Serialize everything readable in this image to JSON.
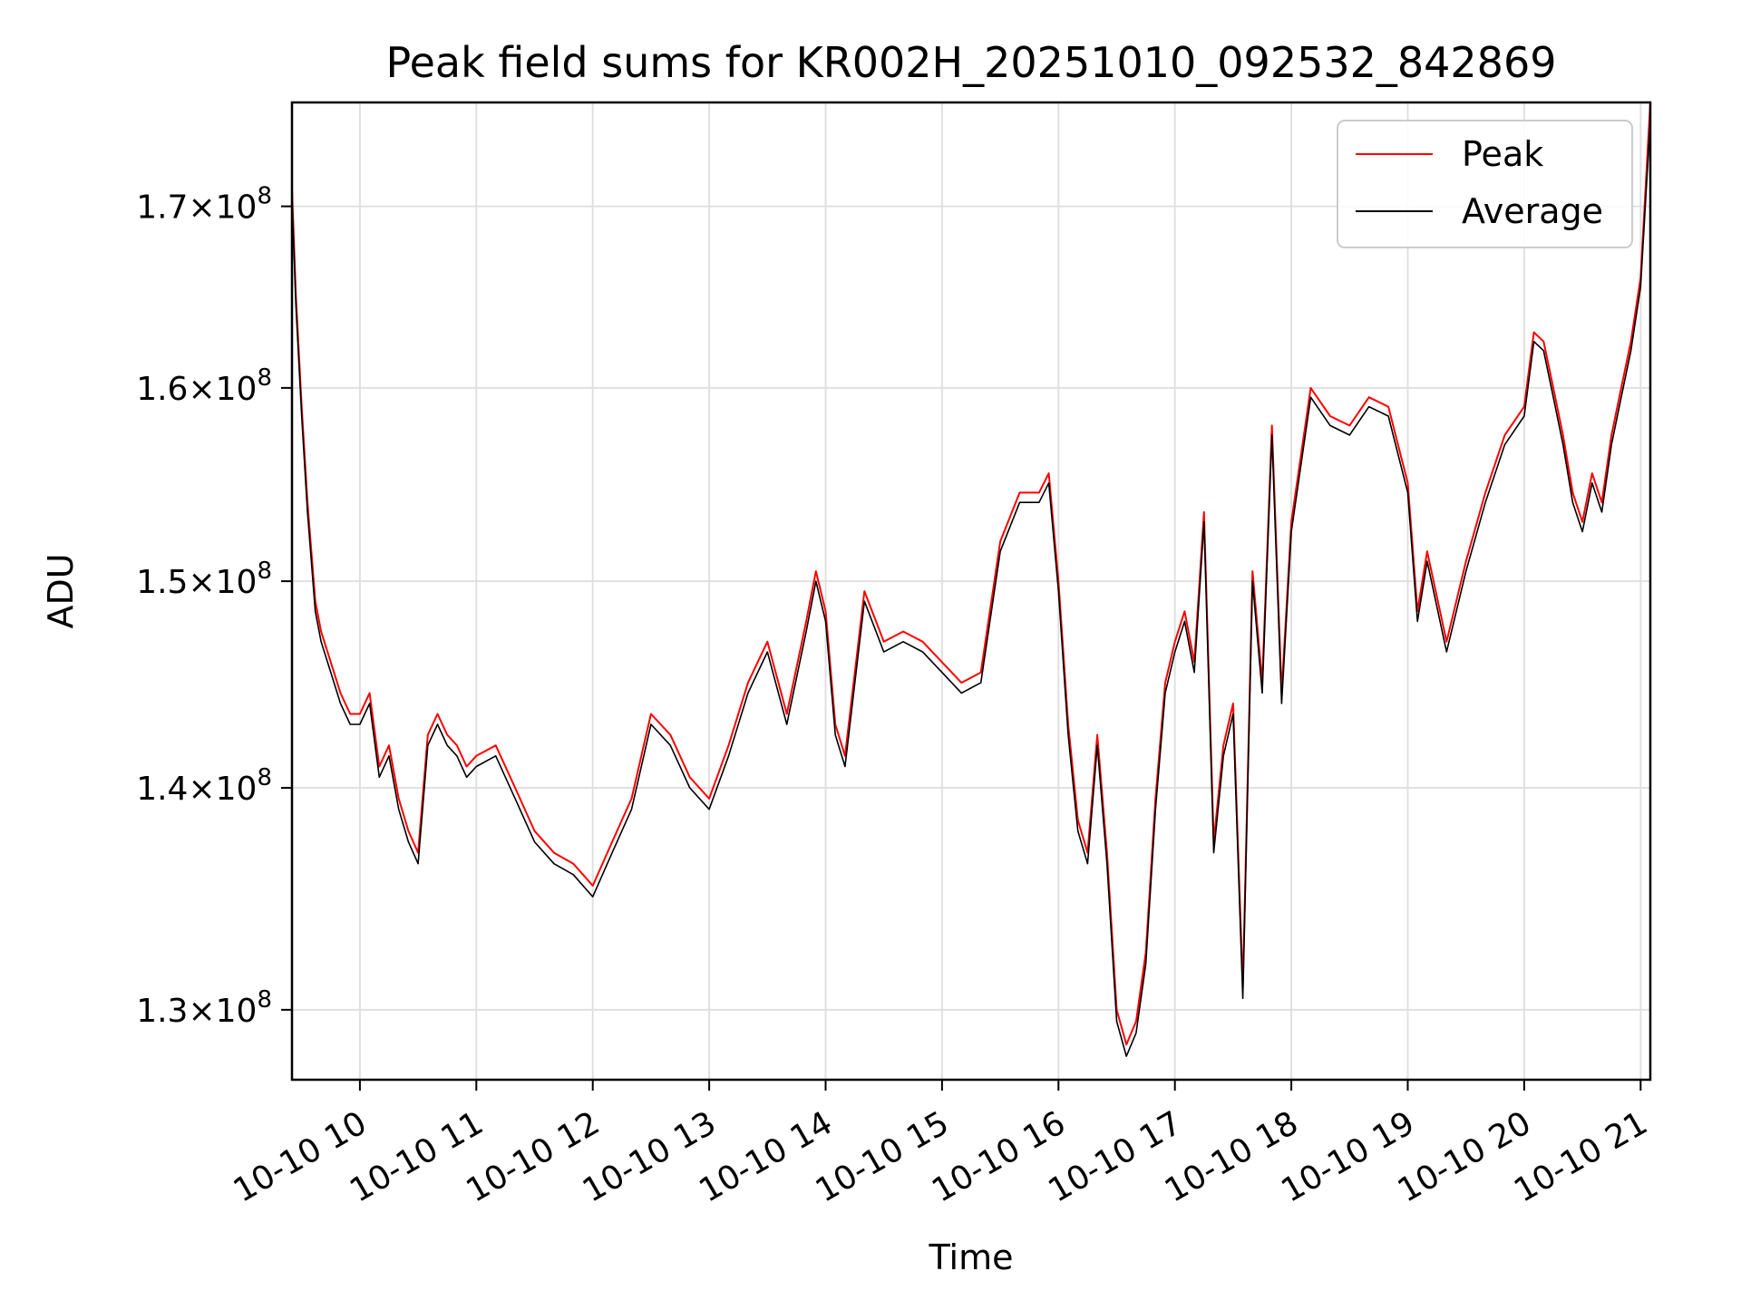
{
  "chart_data": {
    "type": "line",
    "title": "Peak field sums for KR002H_20251010_092532_842869",
    "xlabel": "Time",
    "ylabel": "ADU",
    "x_axis": {
      "kind": "time",
      "range": [
        "2025-10-10 09:25",
        "2025-10-10 21:05"
      ],
      "ticks": [
        {
          "value": "2025-10-10 10:00",
          "label": "10-10 10"
        },
        {
          "value": "2025-10-10 11:00",
          "label": "10-10 11"
        },
        {
          "value": "2025-10-10 12:00",
          "label": "10-10 12"
        },
        {
          "value": "2025-10-10 13:00",
          "label": "10-10 13"
        },
        {
          "value": "2025-10-10 14:00",
          "label": "10-10 14"
        },
        {
          "value": "2025-10-10 15:00",
          "label": "10-10 15"
        },
        {
          "value": "2025-10-10 16:00",
          "label": "10-10 16"
        },
        {
          "value": "2025-10-10 17:00",
          "label": "10-10 17"
        },
        {
          "value": "2025-10-10 18:00",
          "label": "10-10 18"
        },
        {
          "value": "2025-10-10 19:00",
          "label": "10-10 19"
        },
        {
          "value": "2025-10-10 20:00",
          "label": "10-10 20"
        },
        {
          "value": "2025-10-10 21:00",
          "label": "10-10 21"
        }
      ]
    },
    "y_axis": {
      "scale": "log",
      "range": [
        127000000,
        176000000
      ],
      "ticks": [
        {
          "value": 130000000,
          "mantissa": "1.3",
          "exponent": "8"
        },
        {
          "value": 140000000,
          "mantissa": "1.4",
          "exponent": "8"
        },
        {
          "value": 150000000,
          "mantissa": "1.5",
          "exponent": "8"
        },
        {
          "value": 160000000,
          "mantissa": "1.6",
          "exponent": "8"
        },
        {
          "value": 170000000,
          "mantissa": "1.7",
          "exponent": "8"
        }
      ]
    },
    "grid": true,
    "legend": {
      "placement": "top-right"
    },
    "series": [
      {
        "name": "Peak",
        "color": "#ff0000",
        "x": [
          "2025-10-10 09:25",
          "2025-10-10 09:27",
          "2025-10-10 09:30",
          "2025-10-10 09:33",
          "2025-10-10 09:37",
          "2025-10-10 09:40",
          "2025-10-10 09:45",
          "2025-10-10 09:50",
          "2025-10-10 09:55",
          "2025-10-10 10:00",
          "2025-10-10 10:05",
          "2025-10-10 10:10",
          "2025-10-10 10:15",
          "2025-10-10 10:20",
          "2025-10-10 10:25",
          "2025-10-10 10:30",
          "2025-10-10 10:35",
          "2025-10-10 10:40",
          "2025-10-10 10:45",
          "2025-10-10 10:50",
          "2025-10-10 10:55",
          "2025-10-10 11:00",
          "2025-10-10 11:10",
          "2025-10-10 11:20",
          "2025-10-10 11:30",
          "2025-10-10 11:40",
          "2025-10-10 11:50",
          "2025-10-10 11:55",
          "2025-10-10 12:00",
          "2025-10-10 12:10",
          "2025-10-10 12:20",
          "2025-10-10 12:30",
          "2025-10-10 12:40",
          "2025-10-10 12:50",
          "2025-10-10 13:00",
          "2025-10-10 13:10",
          "2025-10-10 13:20",
          "2025-10-10 13:30",
          "2025-10-10 13:40",
          "2025-10-10 13:50",
          "2025-10-10 13:55",
          "2025-10-10 14:00",
          "2025-10-10 14:05",
          "2025-10-10 14:10",
          "2025-10-10 14:20",
          "2025-10-10 14:30",
          "2025-10-10 14:40",
          "2025-10-10 14:50",
          "2025-10-10 15:00",
          "2025-10-10 15:10",
          "2025-10-10 15:20",
          "2025-10-10 15:30",
          "2025-10-10 15:40",
          "2025-10-10 15:50",
          "2025-10-10 15:55",
          "2025-10-10 16:00",
          "2025-10-10 16:05",
          "2025-10-10 16:10",
          "2025-10-10 16:15",
          "2025-10-10 16:20",
          "2025-10-10 16:25",
          "2025-10-10 16:30",
          "2025-10-10 16:35",
          "2025-10-10 16:40",
          "2025-10-10 16:45",
          "2025-10-10 16:50",
          "2025-10-10 16:55",
          "2025-10-10 17:00",
          "2025-10-10 17:05",
          "2025-10-10 17:10",
          "2025-10-10 17:15",
          "2025-10-10 17:20",
          "2025-10-10 17:25",
          "2025-10-10 17:30",
          "2025-10-10 17:35",
          "2025-10-10 17:40",
          "2025-10-10 17:45",
          "2025-10-10 17:50",
          "2025-10-10 17:55",
          "2025-10-10 18:00",
          "2025-10-10 18:10",
          "2025-10-10 18:20",
          "2025-10-10 18:30",
          "2025-10-10 18:40",
          "2025-10-10 18:50",
          "2025-10-10 19:00",
          "2025-10-10 19:05",
          "2025-10-10 19:10",
          "2025-10-10 19:20",
          "2025-10-10 19:30",
          "2025-10-10 19:40",
          "2025-10-10 19:50",
          "2025-10-10 20:00",
          "2025-10-10 20:05",
          "2025-10-10 20:10",
          "2025-10-10 20:15",
          "2025-10-10 20:20",
          "2025-10-10 20:25",
          "2025-10-10 20:30",
          "2025-10-10 20:35",
          "2025-10-10 20:40",
          "2025-10-10 20:45",
          "2025-10-10 20:50",
          "2025-10-10 20:55",
          "2025-10-10 21:00",
          "2025-10-10 21:05"
        ],
        "y": [
          171000000,
          165000000,
          159000000,
          154000000,
          149000000,
          147500000,
          146000000,
          144500000,
          143500000,
          143500000,
          144500000,
          141000000,
          142000000,
          139500000,
          138000000,
          137000000,
          142500000,
          143500000,
          142500000,
          142000000,
          141000000,
          141500000,
          142000000,
          140000000,
          138000000,
          137000000,
          136500000,
          136000000,
          135500000,
          137500000,
          139500000,
          143500000,
          142500000,
          140500000,
          139500000,
          142000000,
          145000000,
          147000000,
          143500000,
          148000000,
          150500000,
          148500000,
          143000000,
          141500000,
          149500000,
          147000000,
          147500000,
          147000000,
          146000000,
          145000000,
          145500000,
          152000000,
          154500000,
          154500000,
          155500000,
          150000000,
          143000000,
          138500000,
          137000000,
          142500000,
          137000000,
          130000000,
          128500000,
          129500000,
          132500000,
          139500000,
          145000000,
          147000000,
          148500000,
          146000000,
          153500000,
          137500000,
          142000000,
          144000000,
          131000000,
          150500000,
          145000000,
          158000000,
          144500000,
          153000000,
          160000000,
          158500000,
          158000000,
          159500000,
          159000000,
          155000000,
          148500000,
          151500000,
          147000000,
          151000000,
          154500000,
          157500000,
          159000000,
          163000000,
          162500000,
          160000000,
          157500000,
          154500000,
          153000000,
          155500000,
          154000000,
          157500000,
          160000000,
          162500000,
          166000000,
          176000000
        ]
      },
      {
        "name": "Average",
        "color": "#000000",
        "x": [
          "2025-10-10 09:25",
          "2025-10-10 09:27",
          "2025-10-10 09:30",
          "2025-10-10 09:33",
          "2025-10-10 09:37",
          "2025-10-10 09:40",
          "2025-10-10 09:45",
          "2025-10-10 09:50",
          "2025-10-10 09:55",
          "2025-10-10 10:00",
          "2025-10-10 10:05",
          "2025-10-10 10:10",
          "2025-10-10 10:15",
          "2025-10-10 10:20",
          "2025-10-10 10:25",
          "2025-10-10 10:30",
          "2025-10-10 10:35",
          "2025-10-10 10:40",
          "2025-10-10 10:45",
          "2025-10-10 10:50",
          "2025-10-10 10:55",
          "2025-10-10 11:00",
          "2025-10-10 11:10",
          "2025-10-10 11:20",
          "2025-10-10 11:30",
          "2025-10-10 11:40",
          "2025-10-10 11:50",
          "2025-10-10 11:55",
          "2025-10-10 12:00",
          "2025-10-10 12:10",
          "2025-10-10 12:20",
          "2025-10-10 12:30",
          "2025-10-10 12:40",
          "2025-10-10 12:50",
          "2025-10-10 13:00",
          "2025-10-10 13:10",
          "2025-10-10 13:20",
          "2025-10-10 13:30",
          "2025-10-10 13:40",
          "2025-10-10 13:50",
          "2025-10-10 13:55",
          "2025-10-10 14:00",
          "2025-10-10 14:05",
          "2025-10-10 14:10",
          "2025-10-10 14:20",
          "2025-10-10 14:30",
          "2025-10-10 14:40",
          "2025-10-10 14:50",
          "2025-10-10 15:00",
          "2025-10-10 15:10",
          "2025-10-10 15:20",
          "2025-10-10 15:30",
          "2025-10-10 15:40",
          "2025-10-10 15:50",
          "2025-10-10 15:55",
          "2025-10-10 16:00",
          "2025-10-10 16:05",
          "2025-10-10 16:10",
          "2025-10-10 16:15",
          "2025-10-10 16:20",
          "2025-10-10 16:25",
          "2025-10-10 16:30",
          "2025-10-10 16:35",
          "2025-10-10 16:40",
          "2025-10-10 16:45",
          "2025-10-10 16:50",
          "2025-10-10 16:55",
          "2025-10-10 17:00",
          "2025-10-10 17:05",
          "2025-10-10 17:10",
          "2025-10-10 17:15",
          "2025-10-10 17:20",
          "2025-10-10 17:25",
          "2025-10-10 17:30",
          "2025-10-10 17:35",
          "2025-10-10 17:40",
          "2025-10-10 17:45",
          "2025-10-10 17:50",
          "2025-10-10 17:55",
          "2025-10-10 18:00",
          "2025-10-10 18:10",
          "2025-10-10 18:20",
          "2025-10-10 18:30",
          "2025-10-10 18:40",
          "2025-10-10 18:50",
          "2025-10-10 19:00",
          "2025-10-10 19:05",
          "2025-10-10 19:10",
          "2025-10-10 19:20",
          "2025-10-10 19:30",
          "2025-10-10 19:40",
          "2025-10-10 19:50",
          "2025-10-10 20:00",
          "2025-10-10 20:05",
          "2025-10-10 20:10",
          "2025-10-10 20:15",
          "2025-10-10 20:20",
          "2025-10-10 20:25",
          "2025-10-10 20:30",
          "2025-10-10 20:35",
          "2025-10-10 20:40",
          "2025-10-10 20:45",
          "2025-10-10 20:50",
          "2025-10-10 20:55",
          "2025-10-10 21:00",
          "2025-10-10 21:05"
        ],
        "y": [
          170500000,
          164500000,
          158500000,
          153500000,
          148500000,
          147000000,
          145500000,
          144000000,
          143000000,
          143000000,
          144000000,
          140500000,
          141500000,
          139000000,
          137500000,
          136500000,
          142000000,
          143000000,
          142000000,
          141500000,
          140500000,
          141000000,
          141500000,
          139500000,
          137500000,
          136500000,
          136000000,
          135500000,
          135000000,
          137000000,
          139000000,
          143000000,
          142000000,
          140000000,
          139000000,
          141500000,
          144500000,
          146500000,
          143000000,
          147500000,
          150000000,
          148000000,
          142500000,
          141000000,
          149000000,
          146500000,
          147000000,
          146500000,
          145500000,
          144500000,
          145000000,
          151500000,
          154000000,
          154000000,
          155000000,
          149500000,
          142500000,
          138000000,
          136500000,
          142000000,
          136500000,
          129500000,
          128000000,
          129000000,
          132000000,
          139000000,
          144500000,
          146500000,
          148000000,
          145500000,
          153000000,
          137000000,
          141500000,
          143500000,
          130500000,
          150000000,
          144500000,
          157500000,
          144000000,
          152500000,
          159500000,
          158000000,
          157500000,
          159000000,
          158500000,
          154500000,
          148000000,
          151000000,
          146500000,
          150500000,
          154000000,
          157000000,
          158500000,
          162500000,
          162000000,
          159500000,
          157000000,
          154000000,
          152500000,
          155000000,
          153500000,
          157000000,
          159500000,
          162000000,
          165500000,
          175000000
        ]
      }
    ]
  }
}
